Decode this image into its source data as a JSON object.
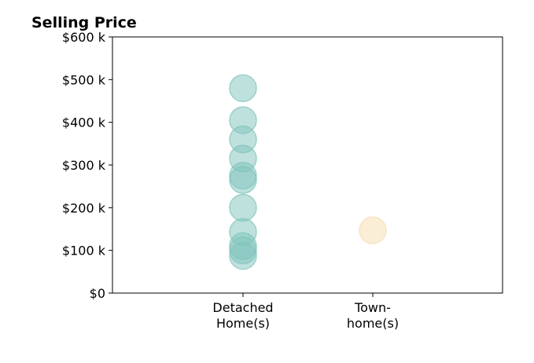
{
  "chart_data": {
    "type": "scatter",
    "title": "Selling Price",
    "xlabel": "",
    "ylabel": "",
    "categories": [
      {
        "lines": [
          "Detached",
          "Home(s)"
        ]
      },
      {
        "lines": [
          "Town-",
          "home(s)"
        ]
      }
    ],
    "y_ticks": [
      {
        "value": 0,
        "label": "$0"
      },
      {
        "value": 100000,
        "label": "$100 k"
      },
      {
        "value": 200000,
        "label": "$200 k"
      },
      {
        "value": 300000,
        "label": "$300 k"
      },
      {
        "value": 400000,
        "label": "$400 k"
      },
      {
        "value": 500000,
        "label": "$500 k"
      },
      {
        "value": 600000,
        "label": "$600 k"
      }
    ],
    "ylim": [
      0,
      600000
    ],
    "grid": false,
    "series": [
      {
        "category_index": 0,
        "color": "#7fc4bb",
        "values": [
          480000,
          405000,
          360000,
          315000,
          275000,
          265000,
          200000,
          143000,
          110000,
          100000,
          87000
        ]
      },
      {
        "category_index": 1,
        "color": "#f5ddb0",
        "values": [
          147000
        ]
      }
    ]
  }
}
